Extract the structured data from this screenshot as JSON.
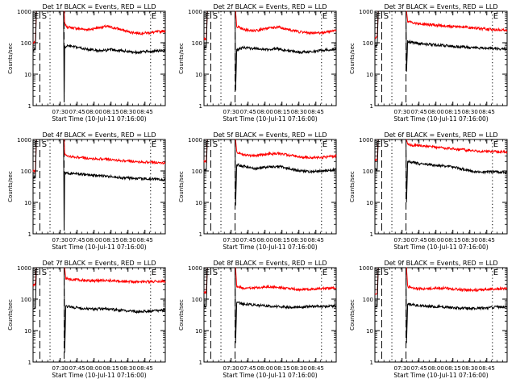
{
  "colors": {
    "events": "#000000",
    "lld": "#ff0000",
    "axis": "#000000",
    "background": "#ffffff"
  },
  "x_tick_labels": [
    "07:30",
    "07:45",
    "08:00",
    "08:15",
    "08:30",
    "08:45"
  ],
  "y_tick_labels": [
    "1",
    "10",
    "100",
    "1000"
  ],
  "chart_data": [
    {
      "type": "line",
      "title": "Det 1f BLACK = Events, RED = LLD",
      "xlabel": "Start Time (10-Jul-11 07:16:00)",
      "ylabel": "Counts/sec",
      "yscale": "log",
      "ylim": [
        1,
        1000
      ],
      "xlim": [
        -10,
        107
      ],
      "x_unit": "minutes relative to start time",
      "markers": [
        {
          "label": "E",
          "x": -10
        },
        {
          "label": "S",
          "x": -3
        },
        {
          "label": "E",
          "x": 94
        }
      ],
      "vlines": [
        {
          "x": -4,
          "style": "dashed"
        },
        {
          "x": 5,
          "style": "dotted"
        },
        {
          "x": 17.5,
          "style": "dashed"
        },
        {
          "x": 94,
          "style": "dotted"
        }
      ],
      "series": [
        {
          "color": "red",
          "x": [
            -10,
            -8,
            -7,
            -6,
            17.5,
            18,
            20,
            30,
            40,
            45,
            55,
            65,
            75,
            85,
            95,
            107
          ],
          "y": [
            100,
            100,
            1000,
            1000,
            1000,
            400,
            320,
            280,
            260,
            290,
            330,
            280,
            220,
            200,
            210,
            240
          ]
        },
        {
          "color": "black",
          "x": [
            -10,
            -8,
            -7,
            -6,
            17,
            17.5,
            18,
            20,
            30,
            40,
            50,
            60,
            70,
            80,
            90,
            100,
            107
          ],
          "y": [
            60,
            60,
            1000,
            1000,
            1000,
            1.3,
            70,
            80,
            70,
            60,
            55,
            60,
            55,
            50,
            52,
            55,
            58
          ]
        }
      ]
    },
    {
      "type": "line",
      "title": "Det 2f BLACK = Events, RED = LLD",
      "xlabel": "Start Time (10-Jul-11 07:16:00)",
      "ylabel": "Counts/sec",
      "yscale": "log",
      "ylim": [
        1,
        1000
      ],
      "xlim": [
        -10,
        107
      ],
      "x_unit": "minutes relative to start time",
      "markers": [
        {
          "label": "E",
          "x": -10
        },
        {
          "label": "S",
          "x": -3
        },
        {
          "label": "E",
          "x": 94
        }
      ],
      "vlines": [
        {
          "x": -4,
          "style": "dashed"
        },
        {
          "x": 5,
          "style": "dotted"
        },
        {
          "x": 17.5,
          "style": "dashed"
        },
        {
          "x": 94,
          "style": "dotted"
        }
      ],
      "series": [
        {
          "color": "red",
          "x": [
            -10,
            -8,
            -7,
            -6,
            18,
            19,
            25,
            35,
            45,
            55,
            65,
            75,
            85,
            95,
            107
          ],
          "y": [
            130,
            130,
            1000,
            1000,
            1000,
            330,
            260,
            240,
            280,
            320,
            260,
            220,
            200,
            210,
            250
          ]
        },
        {
          "color": "black",
          "x": [
            -10,
            -8,
            -7,
            -6,
            17.5,
            18,
            19,
            25,
            35,
            45,
            55,
            65,
            75,
            85,
            95,
            107
          ],
          "y": [
            70,
            70,
            1000,
            1000,
            1000,
            3,
            60,
            70,
            65,
            60,
            65,
            55,
            50,
            52,
            58,
            62
          ]
        }
      ]
    },
    {
      "type": "line",
      "title": "Det 3f BLACK = Events, RED = LLD",
      "xlabel": "Start Time (10-Jul-11 07:16:00)",
      "ylabel": "Counts/sec",
      "yscale": "log",
      "ylim": [
        1,
        1000
      ],
      "xlim": [
        -10,
        107
      ],
      "x_unit": "minutes relative to start time",
      "markers": [
        {
          "label": "E",
          "x": -10
        },
        {
          "label": "S",
          "x": -3
        },
        {
          "label": "E",
          "x": 94
        }
      ],
      "vlines": [
        {
          "x": -4,
          "style": "dashed"
        },
        {
          "x": 5,
          "style": "dotted"
        },
        {
          "x": 17.5,
          "style": "dashed"
        },
        {
          "x": 94,
          "style": "dotted"
        }
      ],
      "series": [
        {
          "color": "red",
          "x": [
            -10,
            -8,
            -7,
            -6,
            18,
            19,
            25,
            35,
            45,
            55,
            65,
            75,
            85,
            95,
            107
          ],
          "y": [
            150,
            150,
            1000,
            1000,
            1000,
            480,
            420,
            380,
            360,
            340,
            320,
            300,
            280,
            260,
            250
          ]
        },
        {
          "color": "black",
          "x": [
            -10,
            -8,
            -7,
            -6,
            17.5,
            18,
            19,
            25,
            35,
            45,
            55,
            65,
            75,
            85,
            95,
            107
          ],
          "y": [
            80,
            80,
            1000,
            1000,
            1000,
            12,
            110,
            100,
            90,
            85,
            80,
            75,
            70,
            68,
            65,
            62
          ]
        }
      ]
    },
    {
      "type": "line",
      "title": "Det 4f BLACK = Events, RED = LLD",
      "xlabel": "Start Time (10-Jul-11 07:16:00)",
      "ylabel": "Counts/sec",
      "yscale": "log",
      "ylim": [
        1,
        1000
      ],
      "xlim": [
        -10,
        107
      ],
      "x_unit": "minutes relative to start time",
      "markers": [
        {
          "label": "E",
          "x": -10
        },
        {
          "label": "S",
          "x": -3
        },
        {
          "label": "E",
          "x": 94
        }
      ],
      "vlines": [
        {
          "x": -4,
          "style": "dashed"
        },
        {
          "x": 5,
          "style": "dotted"
        },
        {
          "x": 17.5,
          "style": "dashed"
        },
        {
          "x": 94,
          "style": "dotted"
        }
      ],
      "series": [
        {
          "color": "red",
          "x": [
            -10,
            -8,
            -7,
            -6,
            17.5,
            18,
            20,
            30,
            40,
            50,
            60,
            70,
            80,
            90,
            100,
            107
          ],
          "y": [
            100,
            100,
            1000,
            1000,
            1000,
            330,
            300,
            270,
            250,
            240,
            230,
            210,
            200,
            190,
            185,
            180
          ]
        },
        {
          "color": "black",
          "x": [
            -10,
            -8,
            -7,
            -6,
            17,
            17.5,
            18,
            20,
            30,
            40,
            50,
            60,
            70,
            80,
            90,
            100,
            107
          ],
          "y": [
            60,
            60,
            1000,
            1000,
            1000,
            1.3,
            90,
            85,
            80,
            75,
            70,
            65,
            60,
            58,
            55,
            55,
            52
          ]
        }
      ]
    },
    {
      "type": "line",
      "title": "Det 5f BLACK = Events, RED = LLD",
      "xlabel": "Start Time (10-Jul-11 07:16:00)",
      "ylabel": "Counts/sec",
      "yscale": "log",
      "ylim": [
        1,
        1000
      ],
      "xlim": [
        -10,
        107
      ],
      "x_unit": "minutes relative to start time",
      "markers": [
        {
          "label": "E",
          "x": -10
        },
        {
          "label": "S",
          "x": -3
        },
        {
          "label": "E",
          "x": 94
        }
      ],
      "vlines": [
        {
          "x": -4,
          "style": "dashed"
        },
        {
          "x": 5,
          "style": "dotted"
        },
        {
          "x": 17.5,
          "style": "dashed"
        },
        {
          "x": 94,
          "style": "dotted"
        }
      ],
      "series": [
        {
          "color": "red",
          "x": [
            -10,
            -8,
            -7,
            -6,
            18,
            19,
            25,
            35,
            45,
            55,
            65,
            75,
            85,
            95,
            107
          ],
          "y": [
            200,
            200,
            1000,
            1000,
            1000,
            400,
            330,
            300,
            340,
            360,
            320,
            280,
            260,
            270,
            300
          ]
        },
        {
          "color": "black",
          "x": [
            -10,
            -8,
            -7,
            -6,
            17.5,
            18,
            19,
            25,
            35,
            45,
            55,
            65,
            75,
            85,
            95,
            107
          ],
          "y": [
            110,
            110,
            1000,
            1000,
            1000,
            8,
            160,
            140,
            120,
            130,
            140,
            120,
            100,
            95,
            100,
            110
          ]
        }
      ]
    },
    {
      "type": "line",
      "title": "Det 6f BLACK = Events, RED = LLD",
      "xlabel": "Start Time (10-Jul-11 07:16:00)",
      "ylabel": "Counts/sec",
      "yscale": "log",
      "ylim": [
        1,
        1000
      ],
      "xlim": [
        -10,
        107
      ],
      "x_unit": "minutes relative to start time",
      "markers": [
        {
          "label": "E",
          "x": -10
        },
        {
          "label": "S",
          "x": -3
        },
        {
          "label": "E",
          "x": 94
        }
      ],
      "vlines": [
        {
          "x": -4,
          "style": "dashed"
        },
        {
          "x": 5,
          "style": "dotted"
        },
        {
          "x": 17.5,
          "style": "dashed"
        },
        {
          "x": 94,
          "style": "dotted"
        }
      ],
      "series": [
        {
          "color": "red",
          "x": [
            -10,
            -8,
            -7,
            -6,
            18,
            19,
            25,
            35,
            45,
            55,
            65,
            75,
            85,
            95,
            107
          ],
          "y": [
            220,
            220,
            1000,
            1000,
            1000,
            700,
            650,
            600,
            560,
            520,
            480,
            450,
            420,
            410,
            400
          ]
        },
        {
          "color": "black",
          "x": [
            -10,
            -8,
            -7,
            -6,
            17.5,
            18,
            19,
            25,
            35,
            45,
            55,
            65,
            75,
            85,
            95,
            107
          ],
          "y": [
            110,
            110,
            1000,
            1000,
            1000,
            10,
            200,
            180,
            160,
            150,
            140,
            120,
            100,
            90,
            95,
            90
          ]
        }
      ]
    },
    {
      "type": "line",
      "title": "Det 7f BLACK = Events, RED = LLD",
      "xlabel": "Start Time (10-Jul-11 07:16:00)",
      "ylabel": "Counts/sec",
      "yscale": "log",
      "ylim": [
        1,
        1000
      ],
      "xlim": [
        -10,
        107
      ],
      "x_unit": "minutes relative to start time",
      "markers": [
        {
          "label": "E",
          "x": -10
        },
        {
          "label": "S",
          "x": -3
        },
        {
          "label": "E",
          "x": 94
        }
      ],
      "vlines": [
        {
          "x": -4,
          "style": "dashed"
        },
        {
          "x": 5,
          "style": "dotted"
        },
        {
          "x": 17.5,
          "style": "dashed"
        },
        {
          "x": 94,
          "style": "dotted"
        }
      ],
      "series": [
        {
          "color": "red",
          "x": [
            -10,
            -8,
            -7,
            -6,
            18,
            19,
            25,
            35,
            45,
            55,
            65,
            75,
            85,
            95,
            107
          ],
          "y": [
            280,
            280,
            1000,
            1000,
            1000,
            450,
            420,
            400,
            380,
            400,
            380,
            360,
            350,
            360,
            370
          ]
        },
        {
          "color": "black",
          "x": [
            -10,
            -8,
            -7,
            -6,
            17.5,
            18,
            19,
            25,
            35,
            45,
            55,
            65,
            75,
            85,
            95,
            107
          ],
          "y": [
            50,
            50,
            1000,
            1000,
            1000,
            2,
            60,
            55,
            50,
            48,
            50,
            45,
            42,
            40,
            42,
            45
          ]
        }
      ]
    },
    {
      "type": "line",
      "title": "Det 8f BLACK = Events, RED = LLD",
      "xlabel": "Start Time (10-Jul-11 07:16:00)",
      "ylabel": "Counts/sec",
      "yscale": "log",
      "ylim": [
        1,
        1000
      ],
      "xlim": [
        -10,
        107
      ],
      "x_unit": "minutes relative to start time",
      "markers": [
        {
          "label": "E",
          "x": -10
        },
        {
          "label": "S",
          "x": -3
        },
        {
          "label": "E",
          "x": 94
        }
      ],
      "vlines": [
        {
          "x": -4,
          "style": "dashed"
        },
        {
          "x": 5,
          "style": "dotted"
        },
        {
          "x": 17.5,
          "style": "dashed"
        },
        {
          "x": 94,
          "style": "dotted"
        }
      ],
      "series": [
        {
          "color": "red",
          "x": [
            -10,
            -8,
            -7,
            -6,
            18,
            19,
            25,
            35,
            45,
            55,
            65,
            75,
            85,
            95,
            107
          ],
          "y": [
            160,
            160,
            1000,
            1000,
            1000,
            260,
            220,
            230,
            250,
            240,
            220,
            200,
            210,
            220,
            230
          ]
        },
        {
          "color": "black",
          "x": [
            -10,
            -8,
            -7,
            -6,
            17.5,
            18,
            19,
            25,
            35,
            45,
            55,
            65,
            75,
            85,
            95,
            107
          ],
          "y": [
            60,
            60,
            1000,
            1000,
            1000,
            4,
            80,
            70,
            65,
            60,
            58,
            55,
            55,
            60,
            58,
            60
          ]
        }
      ]
    },
    {
      "type": "line",
      "title": "Det 9f BLACK = Events, RED = LLD",
      "xlabel": "Start Time (10-Jul-11 07:16:00)",
      "ylabel": "Counts/sec",
      "yscale": "log",
      "ylim": [
        1,
        1000
      ],
      "xlim": [
        -10,
        107
      ],
      "x_unit": "minutes relative to start time",
      "markers": [
        {
          "label": "E",
          "x": -10
        },
        {
          "label": "S",
          "x": -3
        },
        {
          "label": "E",
          "x": 94
        }
      ],
      "vlines": [
        {
          "x": -4,
          "style": "dashed"
        },
        {
          "x": 5,
          "style": "dotted"
        },
        {
          "x": 17.5,
          "style": "dashed"
        },
        {
          "x": 94,
          "style": "dotted"
        }
      ],
      "series": [
        {
          "color": "red",
          "x": [
            -10,
            -8,
            -7,
            -6,
            18,
            19,
            25,
            35,
            45,
            55,
            65,
            75,
            85,
            95,
            107
          ],
          "y": [
            150,
            150,
            1000,
            1000,
            1000,
            250,
            220,
            210,
            230,
            220,
            200,
            190,
            200,
            210,
            220
          ]
        },
        {
          "color": "black",
          "x": [
            -10,
            -8,
            -7,
            -6,
            17.5,
            18,
            19,
            25,
            35,
            45,
            55,
            65,
            75,
            85,
            95,
            107
          ],
          "y": [
            60,
            60,
            1000,
            1000,
            1000,
            4,
            70,
            65,
            60,
            58,
            55,
            52,
            50,
            52,
            55,
            58
          ]
        }
      ]
    }
  ]
}
